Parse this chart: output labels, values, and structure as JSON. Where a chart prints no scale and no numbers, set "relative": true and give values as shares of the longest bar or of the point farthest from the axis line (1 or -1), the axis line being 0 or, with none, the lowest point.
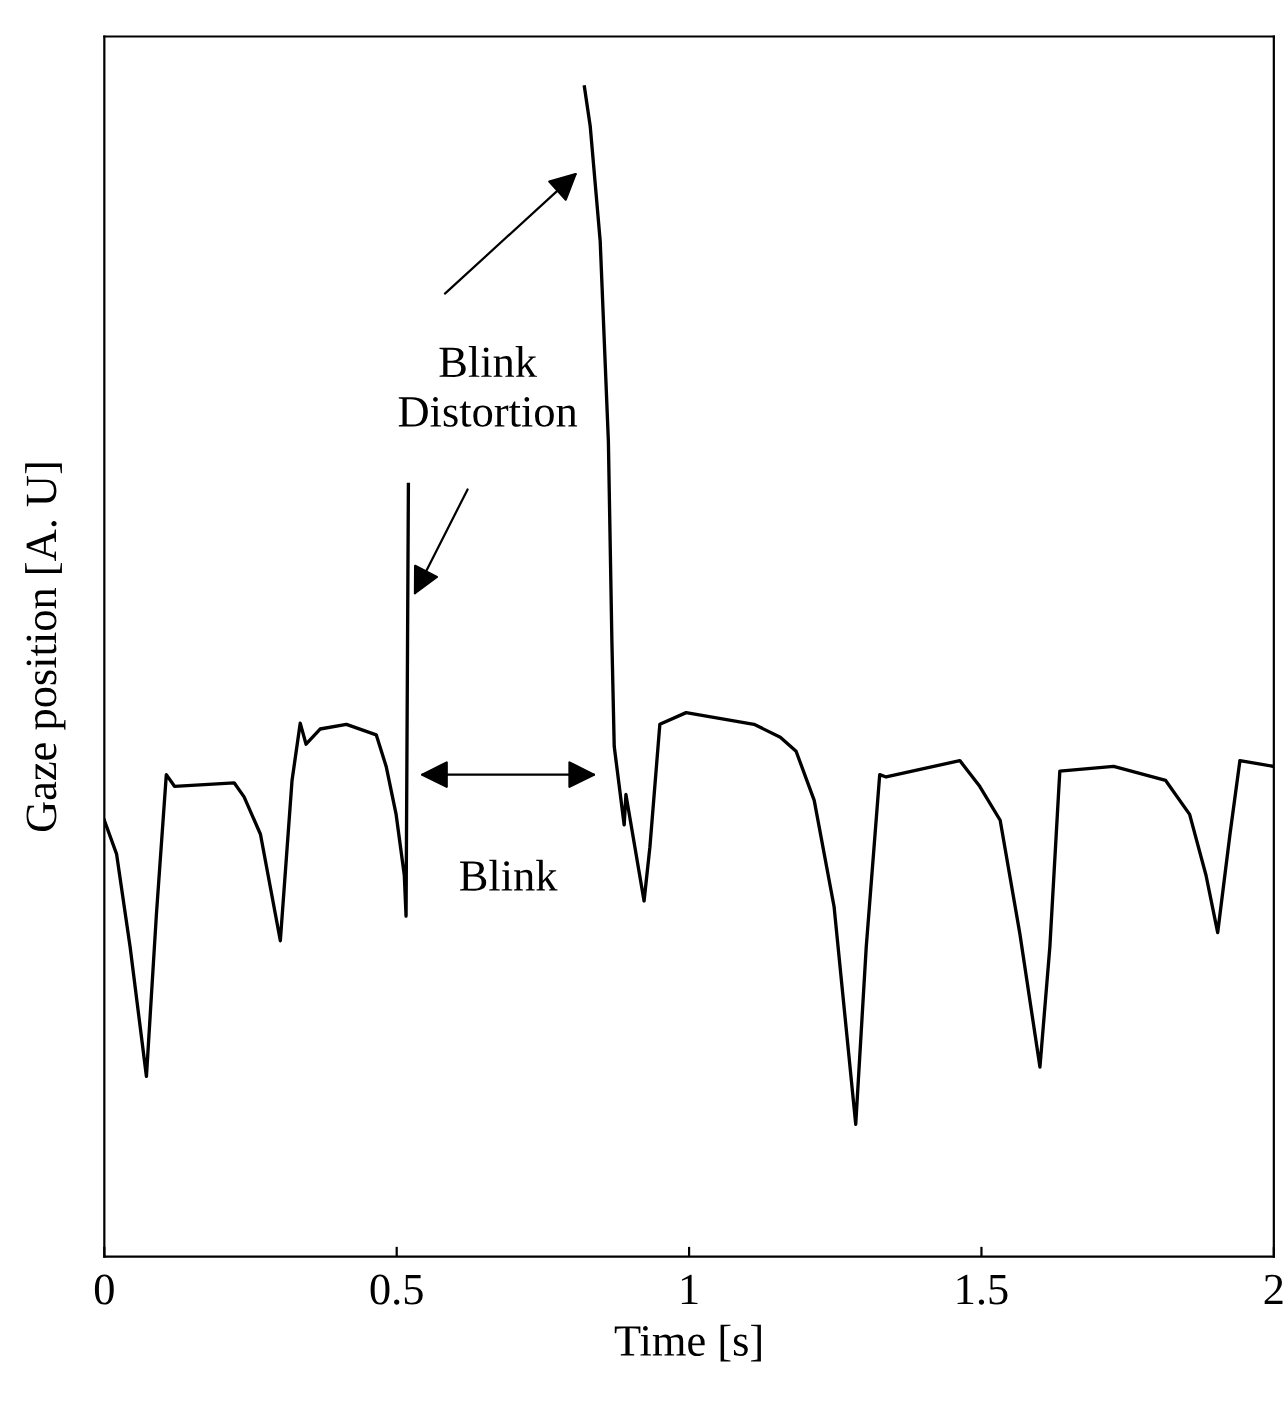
{
  "chart_data": {
    "type": "line",
    "relative": true,
    "xlabel": "Time [s]",
    "ylabel": "Gaze position [A. U]",
    "xlim": [
      0,
      2
    ],
    "xticks": [
      0,
      0.5,
      1,
      1.5,
      2
    ],
    "tick_labels": "x",
    "grid": false,
    "legend": false,
    "x": [
      0.0,
      0.021,
      0.044,
      0.072,
      0.089,
      0.106,
      0.12,
      0.222,
      0.239,
      0.267,
      0.301,
      0.321,
      0.335,
      0.345,
      0.369,
      0.414,
      0.465,
      0.482,
      0.499,
      0.513,
      0.516,
      0.52,
      0.7,
      0.821,
      0.831,
      0.848,
      0.862,
      0.868,
      0.872,
      0.889,
      0.892,
      0.923,
      0.933,
      0.95,
      0.995,
      1.111,
      1.156,
      1.183,
      1.214,
      1.248,
      1.285,
      1.303,
      1.326,
      1.337,
      1.463,
      1.497,
      1.532,
      1.566,
      1.6,
      1.617,
      1.634,
      1.726,
      1.815,
      1.856,
      1.884,
      1.904,
      1.925,
      1.942,
      2.0
    ],
    "series": [
      {
        "color": "#000000",
        "values": [
          0.373,
          0.344,
          0.265,
          0.154,
          0.292,
          0.412,
          0.402,
          0.405,
          0.393,
          0.361,
          0.27,
          0.407,
          0.456,
          0.438,
          0.451,
          0.455,
          0.446,
          0.419,
          0.378,
          0.326,
          0.291,
          0.66,
          null,
          1.0,
          0.966,
          0.868,
          0.697,
          0.526,
          0.436,
          0.369,
          0.395,
          0.304,
          0.35,
          0.455,
          0.465,
          0.455,
          0.444,
          0.432,
          0.39,
          0.299,
          0.113,
          0.265,
          0.412,
          0.41,
          0.424,
          0.402,
          0.373,
          0.275,
          0.162,
          0.265,
          0.415,
          0.419,
          0.407,
          0.378,
          0.326,
          0.277,
          0.361,
          0.424,
          0.419
        ]
      }
    ],
    "annotations": [
      "Blink\nDistortion",
      "Blink"
    ]
  }
}
